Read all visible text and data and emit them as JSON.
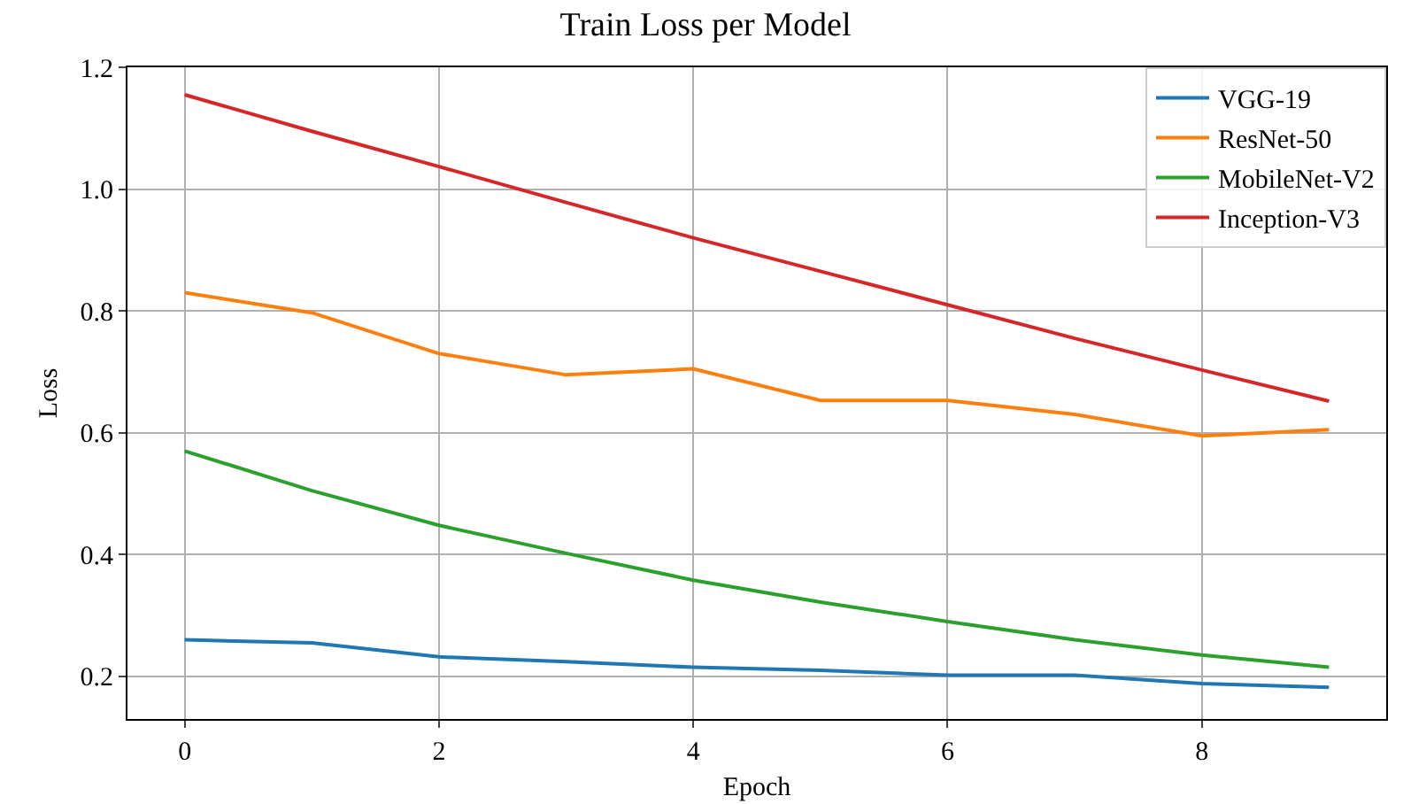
{
  "chart_data": {
    "type": "line",
    "title": "Train Loss per Model",
    "xlabel": "Epoch",
    "ylabel": "Loss",
    "x": [
      0,
      1,
      2,
      3,
      4,
      5,
      6,
      7,
      8,
      9
    ],
    "series": [
      {
        "name": "VGG-19",
        "color": "#1f77b4",
        "values": [
          0.26,
          0.255,
          0.232,
          0.224,
          0.215,
          0.21,
          0.202,
          0.202,
          0.188,
          0.182
        ]
      },
      {
        "name": "ResNet-50",
        "color": "#ff7f0e",
        "values": [
          0.83,
          0.797,
          0.73,
          0.695,
          0.705,
          0.653,
          0.653,
          0.63,
          0.595,
          0.605
        ]
      },
      {
        "name": "MobileNet-V2",
        "color": "#2ca02c",
        "values": [
          0.57,
          0.505,
          0.448,
          0.402,
          0.358,
          0.322,
          0.29,
          0.26,
          0.235,
          0.215
        ]
      },
      {
        "name": "Inception-V3",
        "color": "#d62728",
        "values": [
          1.155,
          1.095,
          1.037,
          0.978,
          0.92,
          0.865,
          0.81,
          0.755,
          0.703,
          0.652
        ]
      }
    ],
    "xlim": [
      -0.45,
      9.45
    ],
    "xticks": [
      0,
      2,
      4,
      6,
      8
    ],
    "ylim": [
      0.13,
      1.2
    ],
    "yticks": [
      0.2,
      0.4,
      0.6,
      0.8,
      {
        "value": 1.0,
        "label": "1.0"
      },
      1.2
    ],
    "grid": true,
    "legend": "top right",
    "marker": "none",
    "line_style": "solid"
  }
}
